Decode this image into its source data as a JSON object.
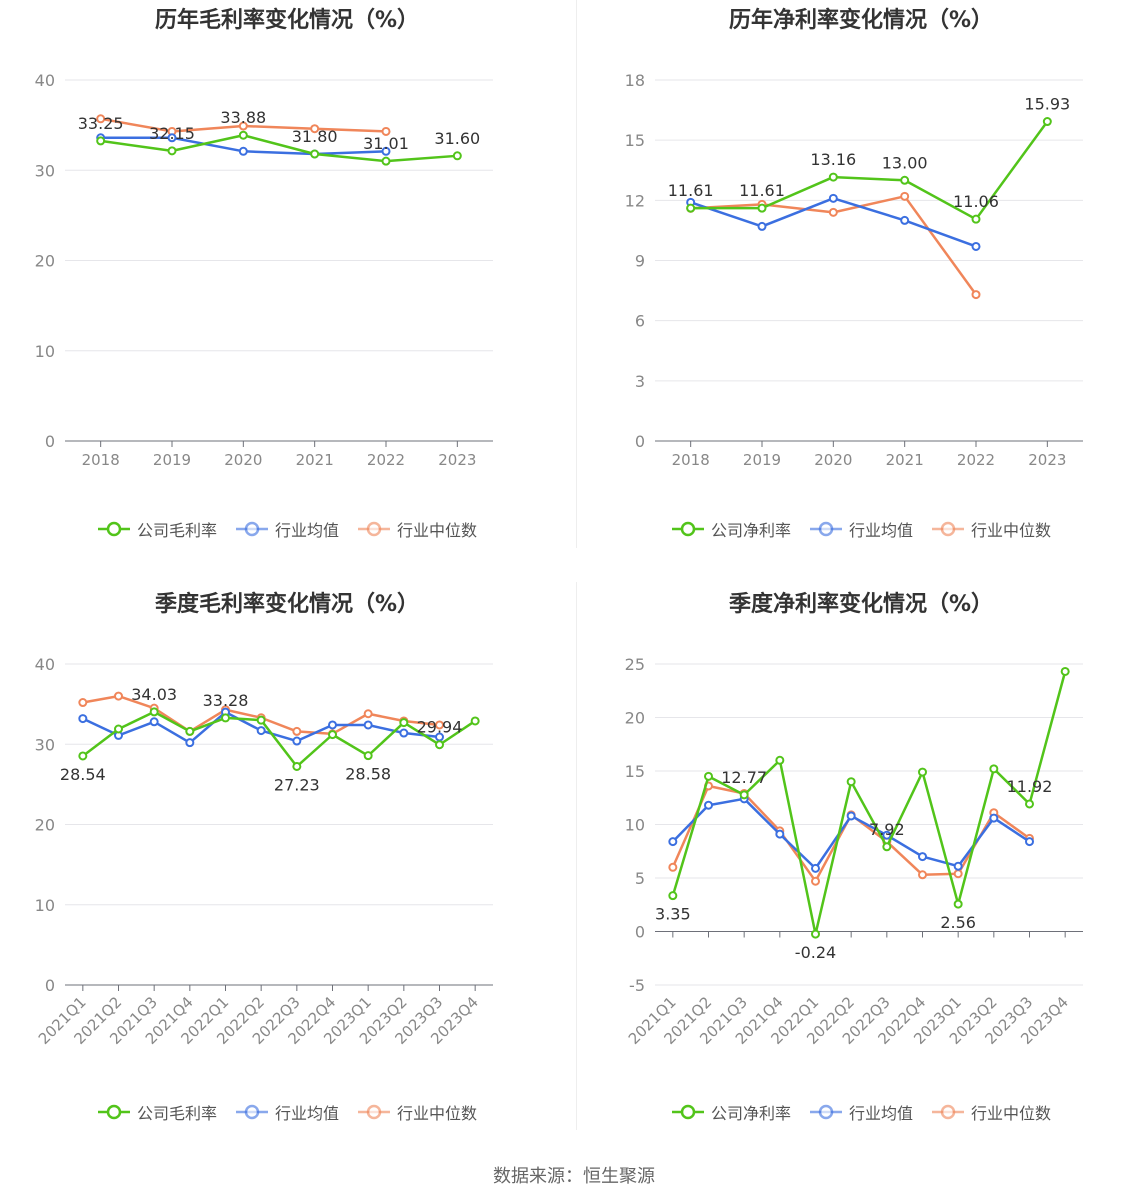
{
  "source_text": "数据来源：恒生聚源",
  "colors": {
    "company": "#52c41a",
    "avg": "#3b6fe0",
    "median": "#f0865a",
    "grid": "#e6e6ea",
    "axis": "#888888",
    "label": "#333333"
  },
  "chart_data": [
    {
      "type": "line",
      "title": "历年毛利率变化情况（%）",
      "categories": [
        "2018",
        "2019",
        "2020",
        "2021",
        "2022",
        "2023"
      ],
      "ylim": [
        0,
        40
      ],
      "yticks": [
        0,
        10,
        20,
        30,
        40
      ],
      "series": [
        {
          "name": "公司毛利率",
          "values": [
            33.25,
            32.15,
            33.88,
            31.8,
            31.01,
            31.6
          ],
          "labels": [
            "33.25",
            "32.15",
            "33.88",
            "31.80",
            "31.01",
            "31.60"
          ]
        },
        {
          "name": "行业均值",
          "values": [
            33.6,
            33.6,
            32.1,
            31.8,
            32.1,
            null
          ]
        },
        {
          "name": "行业中位数",
          "values": [
            35.7,
            34.3,
            34.9,
            34.6,
            34.3,
            null
          ]
        }
      ],
      "legend": "bottom",
      "grid": true
    },
    {
      "type": "line",
      "title": "历年净利率变化情况（%）",
      "categories": [
        "2018",
        "2019",
        "2020",
        "2021",
        "2022",
        "2023"
      ],
      "ylim": [
        0,
        18
      ],
      "yticks": [
        0,
        3,
        6,
        9,
        12,
        15,
        18
      ],
      "series": [
        {
          "name": "公司净利率",
          "values": [
            11.61,
            11.61,
            13.16,
            13.0,
            11.06,
            15.93
          ],
          "labels": [
            "11.61",
            "11.61",
            "13.16",
            "13.00",
            "11.06",
            "15.93"
          ]
        },
        {
          "name": "行业均值",
          "values": [
            11.9,
            10.7,
            12.1,
            11.0,
            9.7,
            null
          ]
        },
        {
          "name": "行业中位数",
          "values": [
            11.6,
            11.8,
            11.4,
            12.2,
            7.3,
            null
          ]
        }
      ],
      "legend": "bottom",
      "grid": true
    },
    {
      "type": "line",
      "title": "季度毛利率变化情况（%）",
      "categories": [
        "2021Q1",
        "2021Q2",
        "2021Q3",
        "2021Q4",
        "2022Q1",
        "2022Q2",
        "2022Q3",
        "2022Q4",
        "2023Q1",
        "2023Q2",
        "2023Q3",
        "2023Q4"
      ],
      "ylim": [
        0,
        40
      ],
      "yticks": [
        0,
        10,
        20,
        30,
        40
      ],
      "series": [
        {
          "name": "公司毛利率",
          "values": [
            28.54,
            31.9,
            34.03,
            31.6,
            33.28,
            33.0,
            27.23,
            31.2,
            28.58,
            32.7,
            29.94,
            32.9
          ],
          "labels": [
            "28.54",
            "",
            "34.03",
            "",
            "33.28",
            "",
            "27.23",
            "",
            "28.58",
            "",
            "29.94",
            ""
          ]
        },
        {
          "name": "行业均值",
          "values": [
            33.2,
            31.1,
            32.8,
            30.2,
            34.0,
            31.7,
            30.4,
            32.4,
            32.4,
            31.4,
            30.9,
            null
          ]
        },
        {
          "name": "行业中位数",
          "values": [
            35.2,
            36.0,
            34.5,
            31.6,
            34.3,
            33.3,
            31.6,
            31.3,
            33.8,
            32.9,
            32.4,
            null
          ]
        }
      ],
      "legend": "bottom",
      "grid": true
    },
    {
      "type": "line",
      "title": "季度净利率变化情况（%）",
      "categories": [
        "2021Q1",
        "2021Q2",
        "2021Q3",
        "2021Q4",
        "2022Q1",
        "2022Q2",
        "2022Q3",
        "2022Q4",
        "2023Q1",
        "2023Q2",
        "2023Q3",
        "2023Q4"
      ],
      "ylim": [
        -5,
        25
      ],
      "yticks": [
        -5,
        0,
        5,
        10,
        15,
        20,
        25
      ],
      "series": [
        {
          "name": "公司净利率",
          "values": [
            3.35,
            14.5,
            12.77,
            16.0,
            -0.24,
            14.0,
            7.92,
            14.9,
            2.56,
            15.2,
            11.92,
            24.3
          ],
          "labels": [
            "3.35",
            "",
            "12.77",
            "",
            "-0.24",
            "",
            "7.92",
            "",
            "2.56",
            "",
            "11.92",
            ""
          ]
        },
        {
          "name": "行业均值",
          "values": [
            8.4,
            11.8,
            12.4,
            9.1,
            5.9,
            10.8,
            9.0,
            7.0,
            6.1,
            10.6,
            8.4,
            null
          ]
        },
        {
          "name": "行业中位数",
          "values": [
            6.0,
            13.6,
            12.9,
            9.4,
            4.7,
            10.9,
            8.4,
            5.3,
            5.4,
            11.1,
            8.7,
            null
          ]
        }
      ],
      "legend": "bottom",
      "grid": true
    }
  ]
}
